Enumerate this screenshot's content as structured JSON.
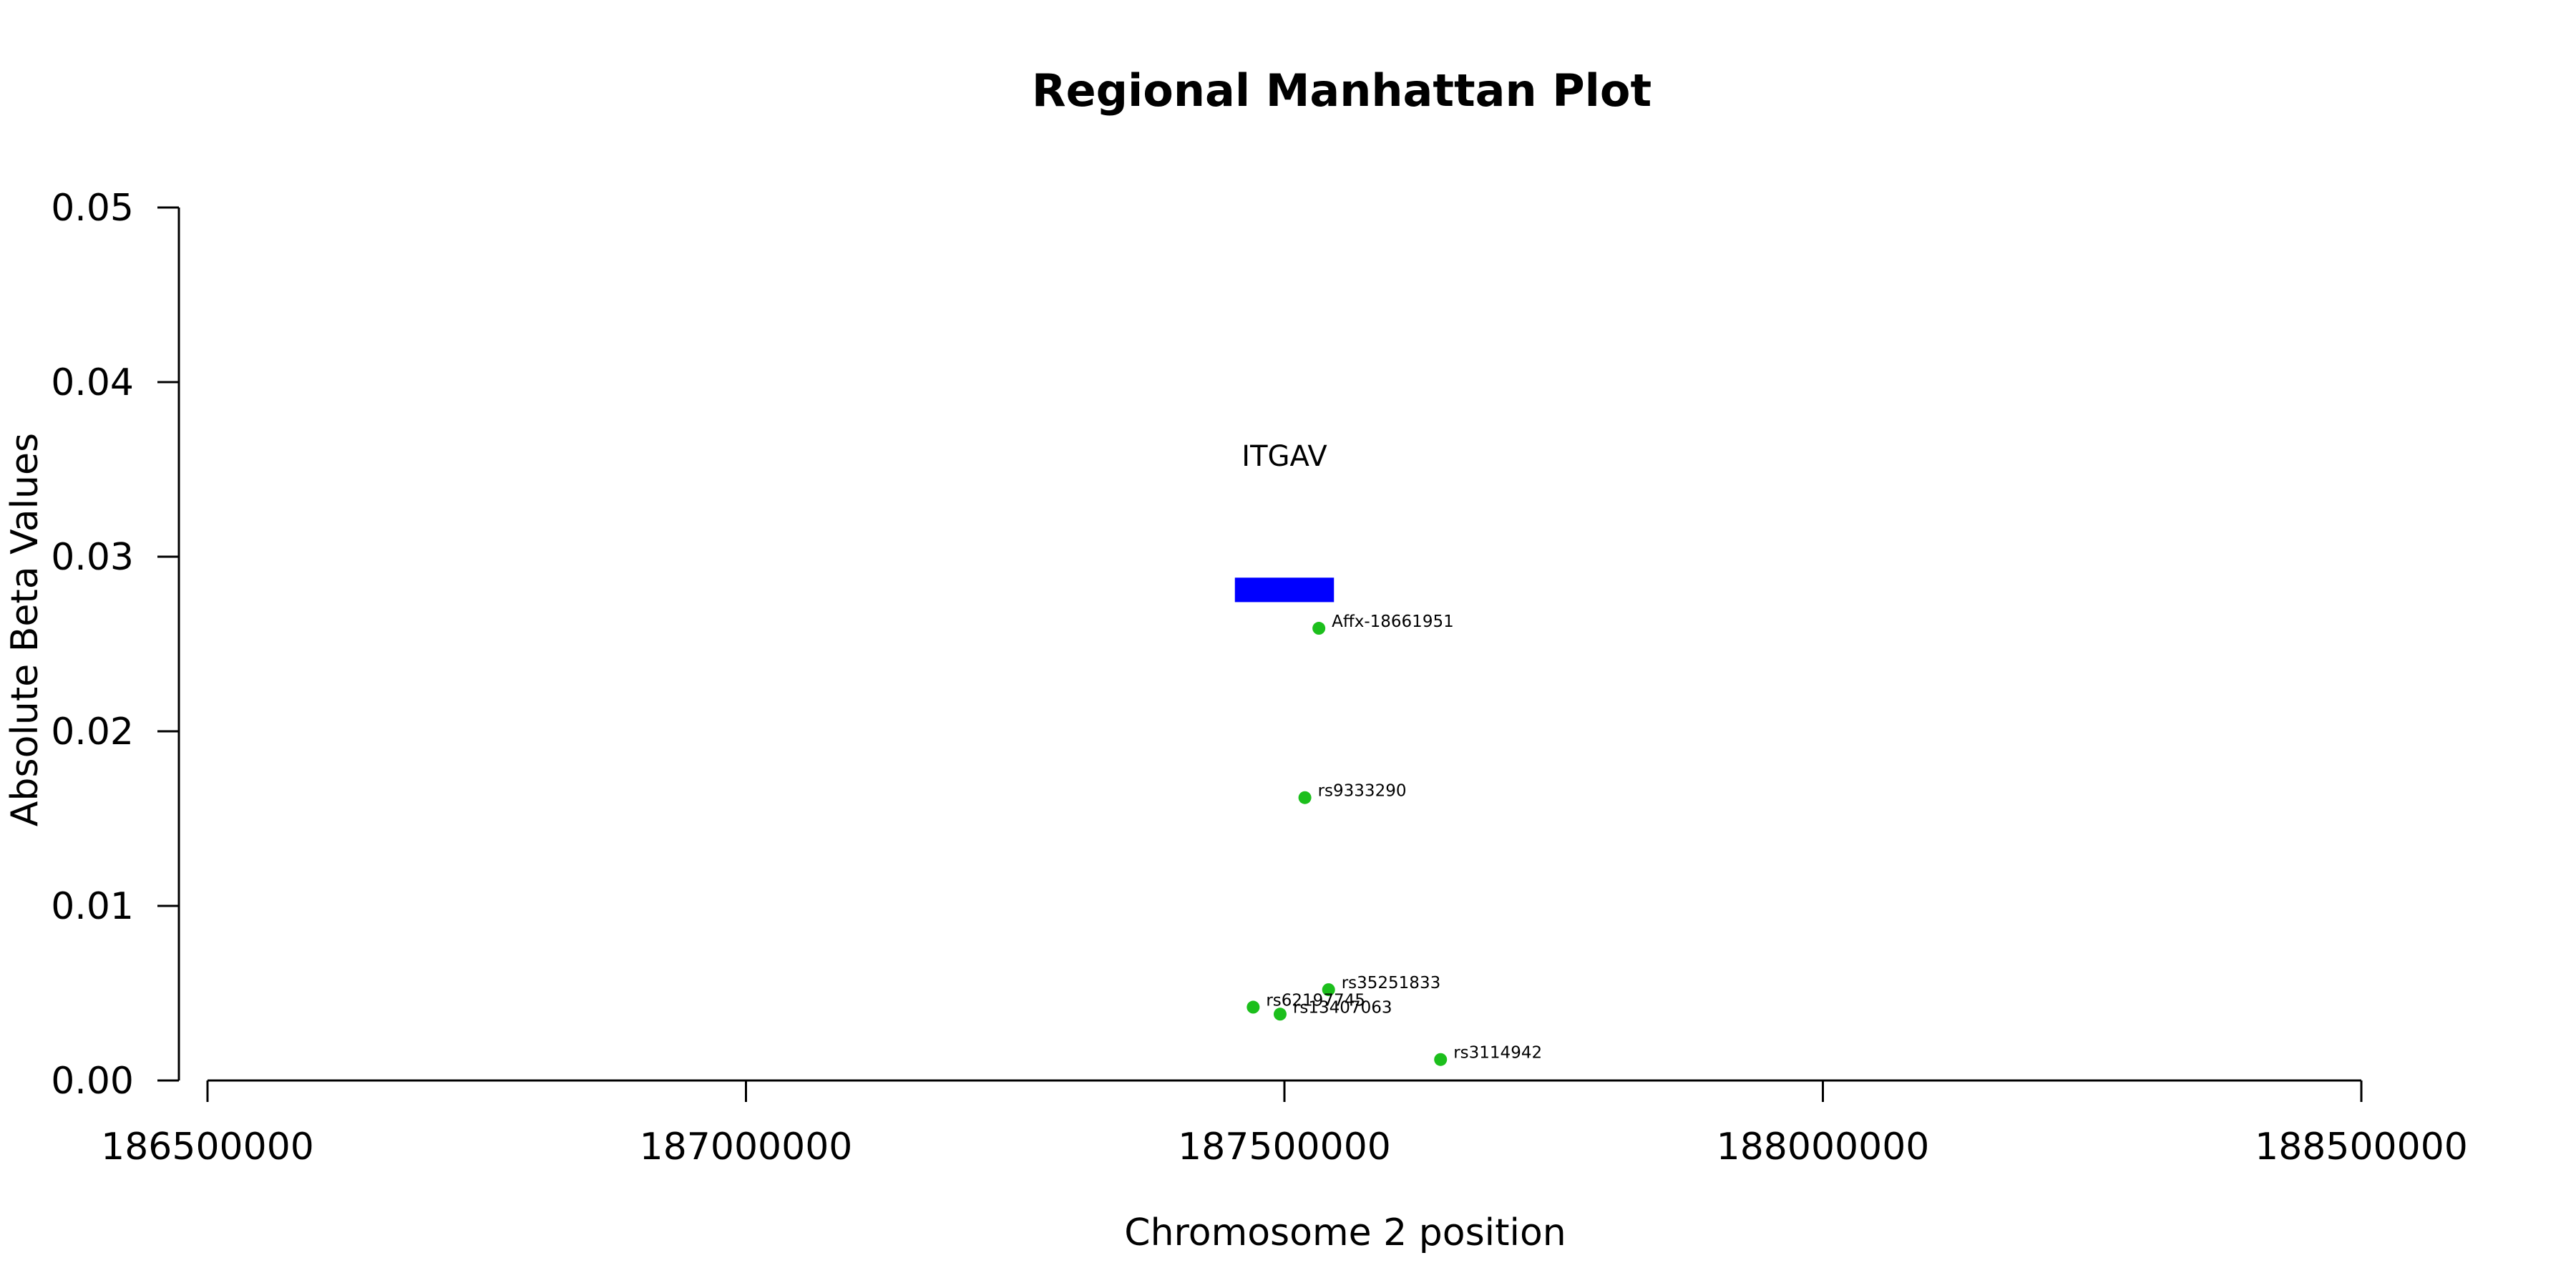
{
  "chart_data": {
    "type": "scatter",
    "title": "Regional Manhattan Plot",
    "xlabel": "Chromosome 2 position",
    "ylabel": "Absolute Beta Values",
    "xlim": [
      186500000,
      188500000
    ],
    "ylim": [
      0,
      0.05
    ],
    "x_ticks": [
      186500000,
      187000000,
      187500000,
      188000000,
      188500000
    ],
    "x_tick_labels": [
      "186500000",
      "187000000",
      "187500000",
      "188000000",
      "188500000"
    ],
    "y_ticks": [
      0,
      0.01,
      0.02,
      0.03,
      0.04,
      0.05
    ],
    "y_tick_labels": [
      "0.00",
      "0.01",
      "0.02",
      "0.03",
      "0.04",
      "0.05"
    ],
    "grid": false,
    "point_color": "#1cbf1c",
    "points": [
      {
        "label": "Affx-18661951",
        "x": 187532000,
        "y": 0.0259
      },
      {
        "label": "rs9333290",
        "x": 187519000,
        "y": 0.0162
      },
      {
        "label": "rs35251833",
        "x": 187541000,
        "y": 0.0052
      },
      {
        "label": "rs62197745",
        "x": 187471000,
        "y": 0.0042
      },
      {
        "label": "rs13407063",
        "x": 187496000,
        "y": 0.0038
      },
      {
        "label": "rs3114942",
        "x": 187645000,
        "y": 0.0012
      }
    ],
    "genes": [
      {
        "name": "ITGAV",
        "start": 187454000,
        "end": 187546000,
        "y_low": 0.0274,
        "y_high": 0.0288,
        "color": "#0000ff"
      }
    ]
  }
}
